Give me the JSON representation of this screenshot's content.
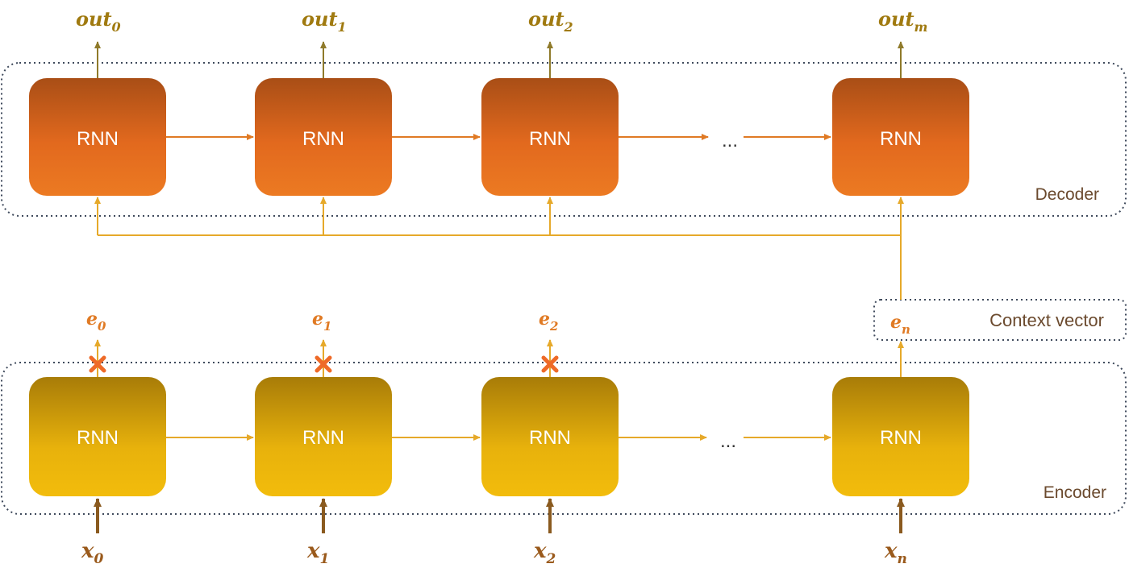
{
  "decoder": {
    "label": "Decoder",
    "cell_label": "RNN",
    "ellipsis": "...",
    "outputs": [
      {
        "base": "out",
        "sub": "0"
      },
      {
        "base": "out",
        "sub": "1"
      },
      {
        "base": "out",
        "sub": "2"
      },
      {
        "base": "out",
        "sub": "m"
      }
    ]
  },
  "encoder": {
    "label": "Encoder",
    "cell_label": "RNN",
    "ellipsis": "...",
    "states": [
      {
        "base": "e",
        "sub": "0",
        "discarded": true
      },
      {
        "base": "e",
        "sub": "1",
        "discarded": true
      },
      {
        "base": "e",
        "sub": "2",
        "discarded": true
      }
    ],
    "inputs": [
      {
        "base": "x",
        "sub": "0"
      },
      {
        "base": "x",
        "sub": "1"
      },
      {
        "base": "x",
        "sub": "2"
      },
      {
        "base": "x",
        "sub": "n"
      }
    ]
  },
  "context": {
    "label": "Context vector",
    "state": {
      "base": "e",
      "sub": "n"
    }
  },
  "colors": {
    "decoder_top": "#A94E16",
    "decoder_bottom": "#E8711F",
    "encoder_top": "#A87C08",
    "encoder_bottom": "#F0B90C",
    "arrow_orange": "#E07A24",
    "arrow_gold": "#E6A92A",
    "arrow_brown": "#8A5A1F",
    "output_text": "#A07A10",
    "state_text": "#E07A24",
    "input_text": "#9A5A1C",
    "cross": "#EE6A28",
    "dotted_border": "#3F4A5C",
    "label_text": "#6B4A2E"
  }
}
